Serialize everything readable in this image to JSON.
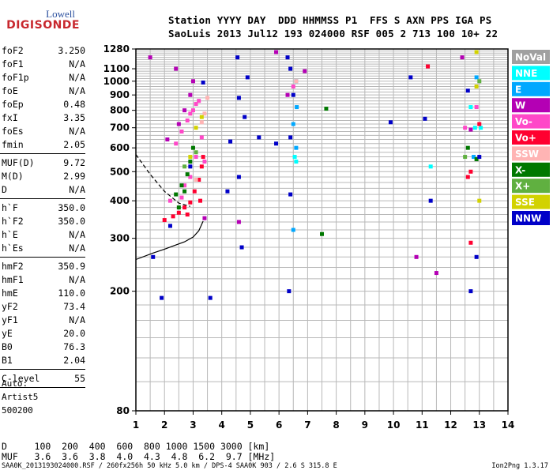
{
  "logo": {
    "line1": "Lowell",
    "line2": "DIGISONDE"
  },
  "header": {
    "line1": "Station YYYY DAY  DDD HHMMSS P1  FFS S AXN PPS IGA PS",
    "line2": "SaoLuis 2013 Jul12 193 024000 RSF 005 2 713 100 10+ 22"
  },
  "scalings": [
    [
      {
        "key": "foF2",
        "val": "3.250"
      },
      {
        "key": "foF1",
        "val": "N/A"
      },
      {
        "key": "foF1p",
        "val": "N/A"
      },
      {
        "key": "foE",
        "val": "N/A"
      },
      {
        "key": "foEp",
        "val": "0.48"
      },
      {
        "key": "fxI",
        "val": "3.35"
      },
      {
        "key": "foEs",
        "val": "N/A"
      },
      {
        "key": "fmin",
        "val": "2.05"
      }
    ],
    [
      {
        "key": "MUF(D)",
        "val": "9.72"
      },
      {
        "key": "M(D)",
        "val": "2.99"
      },
      {
        "key": "D",
        "val": "N/A"
      }
    ],
    [
      {
        "key": "h`F",
        "val": "350.0"
      },
      {
        "key": "h`F2",
        "val": "350.0"
      },
      {
        "key": "h`E",
        "val": "N/A"
      },
      {
        "key": "h`Es",
        "val": "N/A"
      }
    ],
    [
      {
        "key": "hmF2",
        "val": "350.9"
      },
      {
        "key": "hmF1",
        "val": "N/A"
      },
      {
        "key": "hmE",
        "val": "110.0"
      },
      {
        "key": "yF2",
        "val": "73.4"
      },
      {
        "key": "yF1",
        "val": "N/A"
      },
      {
        "key": "yE",
        "val": "20.0"
      },
      {
        "key": "B0",
        "val": "76.3"
      },
      {
        "key": "B1",
        "val": "2.04"
      }
    ],
    [
      {
        "key": "C-level",
        "val": "55"
      }
    ]
  ],
  "autoscaler": {
    "line1": "Auto:",
    "line2": "Artist5",
    "line3": "500200"
  },
  "muf_table": {
    "d_row": "D     100  200  400  600  800 1000 1500 3000 [km]",
    "muf_row": "MUF   3.6  3.6  3.8  4.0  4.3  4.8  6.2  9.7 [MHz]"
  },
  "footer": {
    "left": "SAA0K_2013193024000.RSF / 260fx256h 50 kHz 5.0 km / DPS-4 SAA0K 903 / 2.6 S 315.8 E",
    "right": "Ion2Png 1.3.17"
  },
  "legend": [
    {
      "label": "NoVal",
      "color": "#a0a0a0"
    },
    {
      "label": "NNE",
      "color": "#00ffff"
    },
    {
      "label": "E",
      "color": "#00a8ff"
    },
    {
      "label": "W",
      "color": "#b400b4"
    },
    {
      "label": "Vo-",
      "color": "#ff48c8"
    },
    {
      "label": "Vo+",
      "color": "#ff0030"
    },
    {
      "label": "SSW",
      "color": "#ffb4b4"
    },
    {
      "label": "X-",
      "color": "#007800"
    },
    {
      "label": "X+",
      "color": "#60b040"
    },
    {
      "label": "SSE",
      "color": "#d2d200"
    },
    {
      "label": "NNW",
      "color": "#0000c8"
    }
  ],
  "chart_data": {
    "type": "scatter",
    "title": "",
    "xlabel": "",
    "ylabel": "",
    "xlim": [
      1,
      14
    ],
    "ylim": [
      80,
      1280
    ],
    "x_scale": "linear",
    "y_scale": "log",
    "x_ticks": [
      1,
      2,
      3,
      4,
      5,
      6,
      7,
      8,
      9,
      10,
      11,
      12,
      13,
      14
    ],
    "y_ticks": [
      80,
      200,
      300,
      400,
      500,
      600,
      700,
      800,
      900,
      1000,
      1100,
      1280
    ],
    "grid": true,
    "legend_position": "right",
    "series": [
      {
        "name": "NoVal",
        "color": "#a0a0a0",
        "points": []
      },
      {
        "name": "NNE",
        "color": "#00ffff",
        "points": [
          [
            6.55,
            560
          ],
          [
            6.6,
            540
          ],
          [
            11.3,
            520
          ],
          [
            12.7,
            820
          ],
          [
            12.85,
            700
          ],
          [
            13.05,
            700
          ]
        ]
      },
      {
        "name": "E",
        "color": "#00a8ff",
        "points": [
          [
            6.6,
            1000
          ],
          [
            6.62,
            820
          ],
          [
            6.5,
            720
          ],
          [
            6.6,
            600
          ],
          [
            6.5,
            320
          ],
          [
            12.9,
            1030
          ],
          [
            12.8,
            560
          ]
        ]
      },
      {
        "name": "W",
        "color": "#b400b4",
        "points": [
          [
            1.5,
            1200
          ],
          [
            2.4,
            1100
          ],
          [
            2.7,
            800
          ],
          [
            2.9,
            900
          ],
          [
            3.0,
            1000
          ],
          [
            3.4,
            350
          ],
          [
            2.1,
            640
          ],
          [
            2.5,
            720
          ],
          [
            4.6,
            340
          ],
          [
            5.9,
            1250
          ],
          [
            6.3,
            900
          ],
          [
            6.9,
            1080
          ],
          [
            10.8,
            260
          ],
          [
            11.5,
            230
          ],
          [
            12.4,
            1200
          ],
          [
            12.7,
            690
          ]
        ]
      },
      {
        "name": "Vo-",
        "color": "#ff48c8",
        "points": [
          [
            2.6,
            680
          ],
          [
            2.8,
            740
          ],
          [
            3.0,
            800
          ],
          [
            3.2,
            860
          ],
          [
            2.4,
            620
          ],
          [
            2.9,
            780
          ],
          [
            3.1,
            840
          ],
          [
            2.6,
            410
          ],
          [
            2.9,
            480
          ],
          [
            3.1,
            560
          ],
          [
            3.3,
            650
          ],
          [
            3.4,
            540
          ],
          [
            2.2,
            400
          ],
          [
            2.7,
            450
          ],
          [
            6.5,
            960
          ],
          [
            12.5,
            700
          ],
          [
            12.9,
            820
          ]
        ]
      },
      {
        "name": "Vo+",
        "color": "#ff0030",
        "points": [
          [
            2.0,
            345
          ],
          [
            2.3,
            355
          ],
          [
            2.5,
            365
          ],
          [
            2.7,
            380
          ],
          [
            2.9,
            395
          ],
          [
            3.05,
            430
          ],
          [
            3.2,
            470
          ],
          [
            3.3,
            520
          ],
          [
            3.35,
            560
          ],
          [
            3.25,
            400
          ],
          [
            2.8,
            360
          ],
          [
            12.6,
            480
          ],
          [
            12.7,
            500
          ],
          [
            13.0,
            720
          ],
          [
            12.7,
            290
          ],
          [
            11.2,
            1120
          ]
        ]
      },
      {
        "name": "SSW",
        "color": "#ffb4b4",
        "points": [
          [
            3.4,
            780
          ],
          [
            3.3,
            730
          ],
          [
            3.5,
            880
          ],
          [
            3.1,
            470
          ],
          [
            6.6,
            1000
          ]
        ]
      },
      {
        "name": "X-",
        "color": "#007800",
        "points": [
          [
            2.4,
            420
          ],
          [
            2.6,
            450
          ],
          [
            2.8,
            490
          ],
          [
            2.9,
            540
          ],
          [
            3.0,
            600
          ],
          [
            2.5,
            380
          ],
          [
            2.7,
            430
          ],
          [
            7.65,
            810
          ],
          [
            7.5,
            310
          ],
          [
            12.6,
            600
          ],
          [
            12.9,
            550
          ]
        ]
      },
      {
        "name": "X+",
        "color": "#60b040",
        "points": [
          [
            2.7,
            520
          ],
          [
            3.1,
            580
          ],
          [
            13.0,
            1000
          ],
          [
            12.5,
            560
          ]
        ]
      },
      {
        "name": "SSE",
        "color": "#d2d200",
        "points": [
          [
            3.1,
            700
          ],
          [
            3.3,
            760
          ],
          [
            2.9,
            560
          ],
          [
            12.9,
            960
          ],
          [
            12.9,
            1250
          ],
          [
            13.0,
            400
          ]
        ]
      },
      {
        "name": "NNW",
        "color": "#0000c8",
        "points": [
          [
            1.6,
            260
          ],
          [
            1.9,
            190
          ],
          [
            2.2,
            330
          ],
          [
            2.9,
            520
          ],
          [
            3.35,
            990
          ],
          [
            3.6,
            190
          ],
          [
            4.2,
            430
          ],
          [
            4.3,
            630
          ],
          [
            4.6,
            880
          ],
          [
            4.55,
            1200
          ],
          [
            4.6,
            480
          ],
          [
            4.7,
            280
          ],
          [
            4.9,
            1030
          ],
          [
            4.8,
            760
          ],
          [
            5.3,
            650
          ],
          [
            5.9,
            620
          ],
          [
            6.3,
            1200
          ],
          [
            6.4,
            1100
          ],
          [
            6.4,
            650
          ],
          [
            6.4,
            420
          ],
          [
            6.35,
            200
          ],
          [
            6.5,
            900
          ],
          [
            9.9,
            730
          ],
          [
            10.6,
            1030
          ],
          [
            11.1,
            750
          ],
          [
            11.3,
            400
          ],
          [
            12.6,
            930
          ],
          [
            12.7,
            200
          ],
          [
            13.0,
            560
          ],
          [
            12.9,
            260
          ]
        ]
      }
    ],
    "curves": [
      {
        "name": "virtual-height trace",
        "points": [
          [
            1.0,
            255
          ],
          [
            1.6,
            268
          ],
          [
            2.0,
            276
          ],
          [
            2.4,
            285
          ],
          [
            2.7,
            292
          ],
          [
            3.0,
            303
          ],
          [
            3.2,
            318
          ],
          [
            3.35,
            342
          ]
        ]
      },
      {
        "name": "profile trace",
        "points": [
          [
            1.0,
            570
          ],
          [
            1.5,
            490
          ],
          [
            2.0,
            430
          ],
          [
            2.5,
            393
          ],
          [
            2.9,
            383
          ]
        ]
      }
    ]
  }
}
